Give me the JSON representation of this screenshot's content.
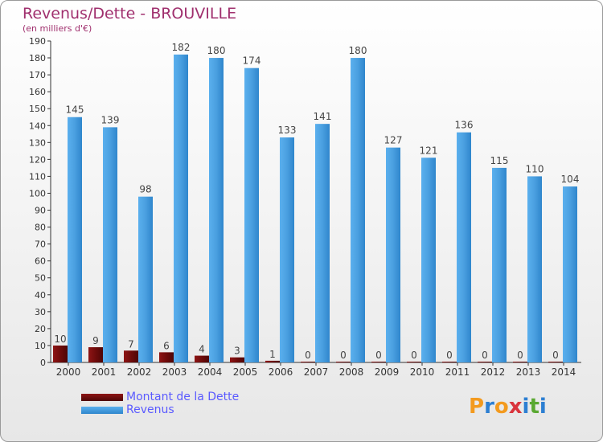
{
  "title": "Revenus/Dette - BROUVILLE",
  "subtitle": "(en milliers d'€)",
  "logo": {
    "letters": [
      "P",
      "r",
      "o",
      "x",
      "i",
      "t",
      "i"
    ],
    "colors": [
      "#f39a1e",
      "#2d7fd2",
      "#f39a1e",
      "#d9343c",
      "#2d7fd2",
      "#5aa832",
      "#2d7fd2"
    ]
  },
  "colors": {
    "debt": "#6e0b0b",
    "revenue": "#4a9fe0",
    "title": "#a0306e",
    "legend_text": "#5a5aff"
  },
  "chart_data": {
    "type": "bar",
    "title": "Revenus/Dette - BROUVILLE",
    "subtitle": "(en milliers d'€)",
    "categories": [
      "2000",
      "2001",
      "2002",
      "2003",
      "2004",
      "2005",
      "2006",
      "2007",
      "2008",
      "2009",
      "2010",
      "2011",
      "2012",
      "2013",
      "2014"
    ],
    "series": [
      {
        "name": "Montant de la Dette",
        "values": [
          10,
          9,
          7,
          6,
          4,
          3,
          1,
          0,
          0,
          0,
          0,
          0,
          0,
          0,
          0
        ]
      },
      {
        "name": "Revenus",
        "values": [
          145,
          139,
          98,
          182,
          180,
          174,
          133,
          141,
          180,
          127,
          121,
          136,
          115,
          110,
          104
        ]
      }
    ],
    "ylim": [
      0,
      190
    ],
    "yticks": [
      0,
      10,
      20,
      30,
      40,
      50,
      60,
      70,
      80,
      90,
      100,
      110,
      120,
      130,
      140,
      150,
      160,
      170,
      180,
      190
    ],
    "grid": false,
    "legend_position": "bottom-left"
  }
}
